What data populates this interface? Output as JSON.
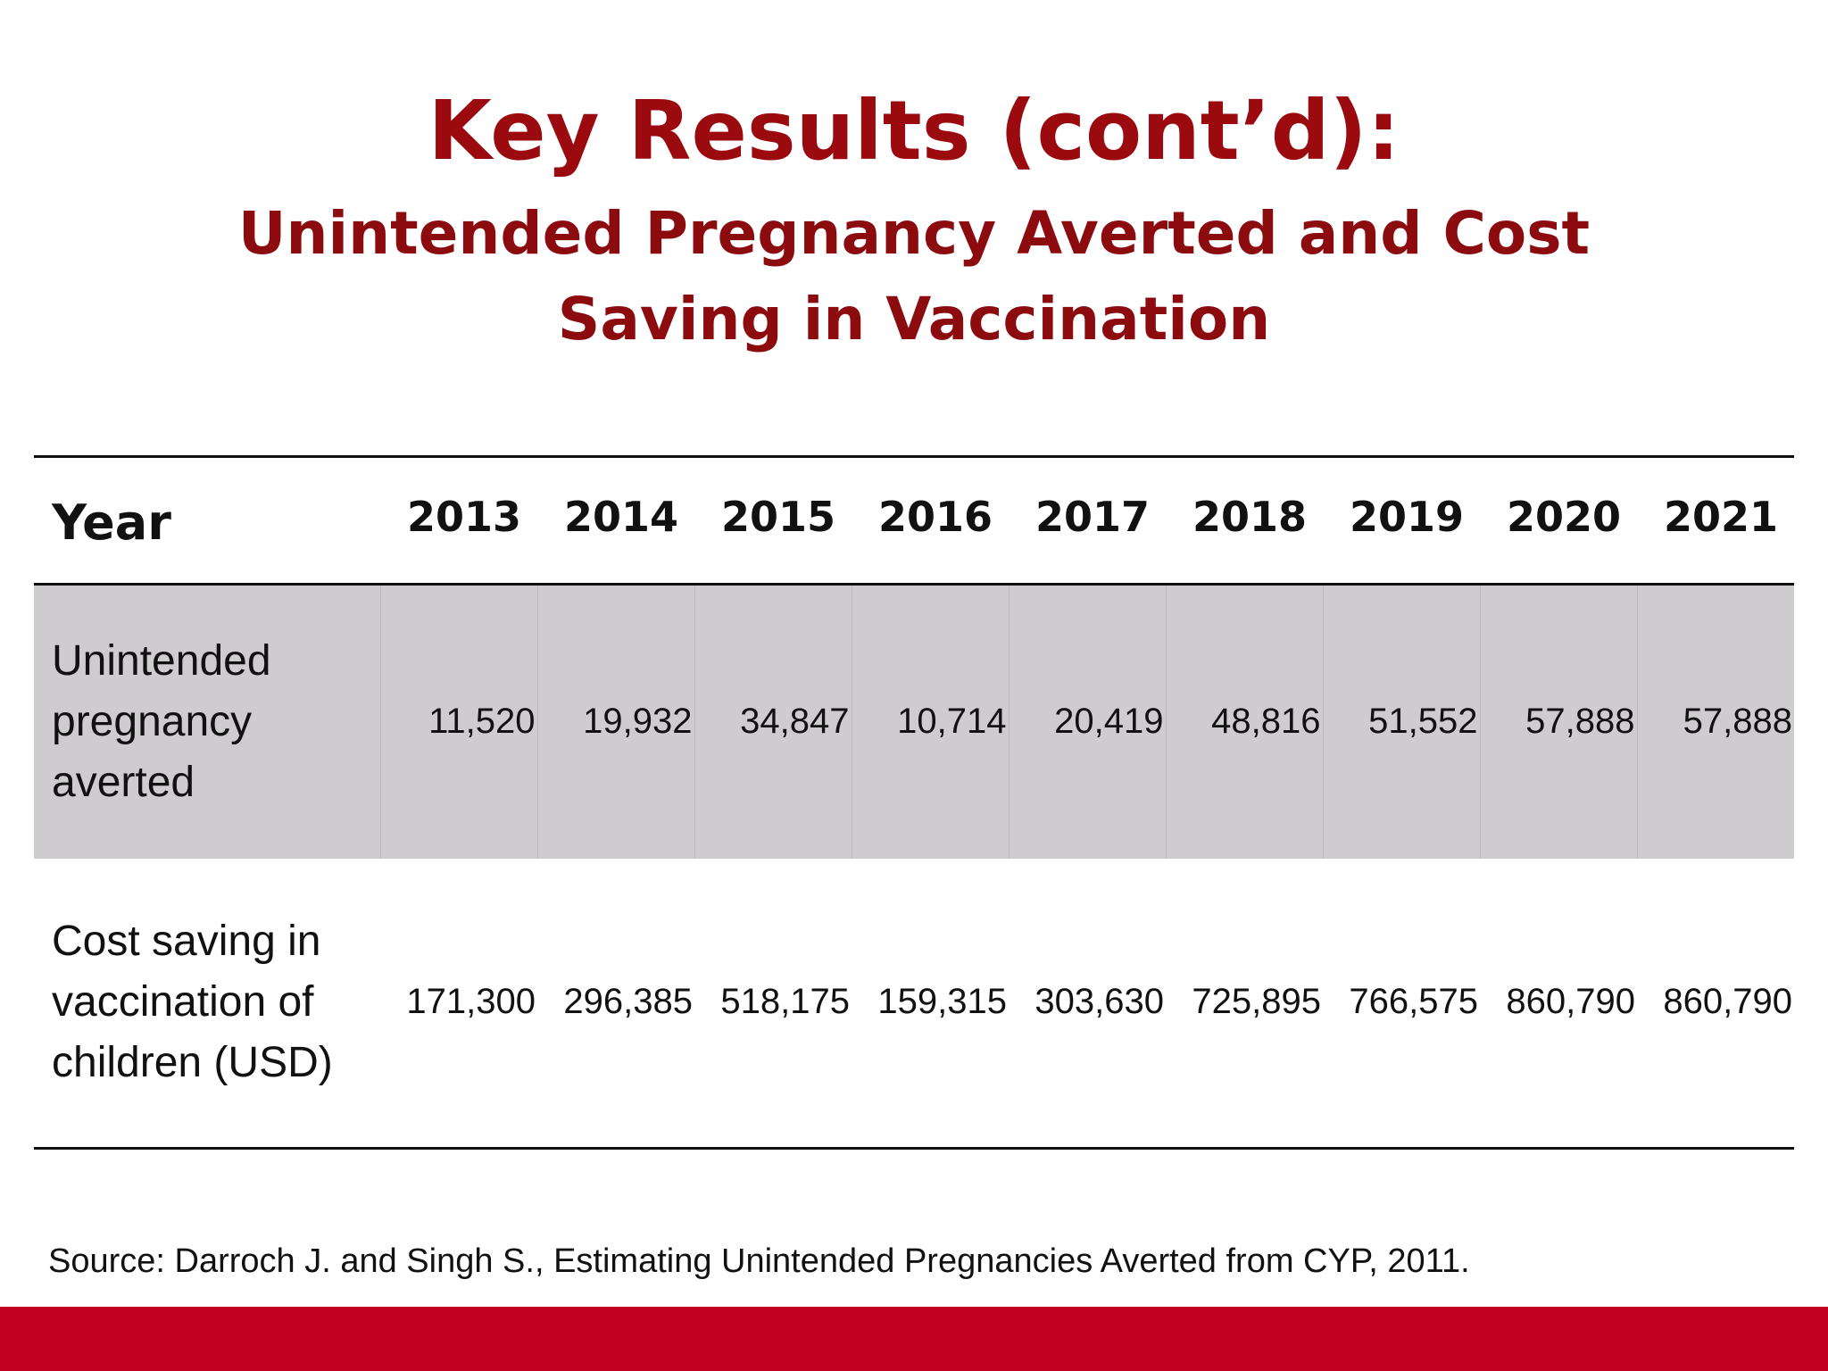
{
  "title": "Key Results (cont’d):",
  "subtitle": "Unintended Pregnancy Averted and Cost Saving in Vaccination",
  "table": {
    "header_label": "Year",
    "years": [
      "2013",
      "2014",
      "2015",
      "2016",
      "2017",
      "2018",
      "2019",
      "2020",
      "2021"
    ],
    "rows": [
      {
        "label": "Unintended pregnancy averted",
        "values": [
          "11,520",
          "19,932",
          "34,847",
          "10,714",
          "20,419",
          "48,816",
          "51,552",
          "57,888",
          "57,888"
        ]
      },
      {
        "label": "Cost saving in vaccination of children (USD)",
        "values": [
          "171,300",
          "296,385",
          "518,175",
          "159,315",
          "303,630",
          "725,895",
          "766,575",
          "860,790",
          "860,790"
        ]
      }
    ]
  },
  "source": "Source: Darroch J. and Singh S., Estimating Unintended Pregnancies Averted from CYP, 2011.",
  "colors": {
    "title": "#9b0a0e",
    "shaded_row": "#cfcccf",
    "footer_bar": "#c20022"
  }
}
